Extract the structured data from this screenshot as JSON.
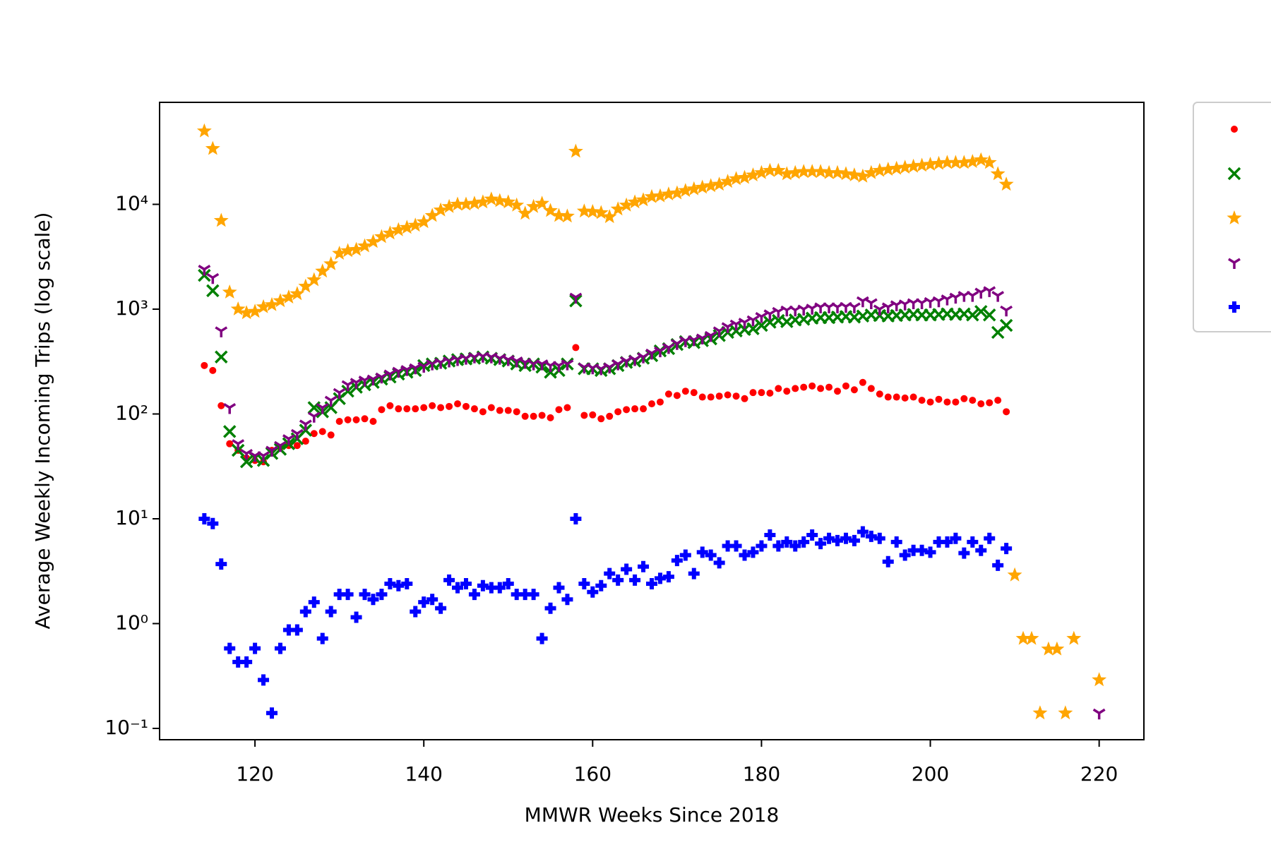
{
  "chart_data": {
    "type": "scatter",
    "xlabel": "MMWR Weeks Since 2018",
    "ylabel": "Average Weekly Incoming Trips (log scale)",
    "yscale": "log",
    "legend": "outside right",
    "xlim": [
      108.7,
      225.3
    ],
    "xticks": [
      120,
      140,
      160,
      180,
      200,
      220
    ],
    "ylim": [
      0.078,
      94000
    ],
    "yticks": [
      {
        "value": 0.1,
        "label": "10⁻¹"
      },
      {
        "value": 1,
        "label": "10⁰"
      },
      {
        "value": 10,
        "label": "10¹"
      },
      {
        "value": 100,
        "label": "10²"
      },
      {
        "value": 1000,
        "label": "10³"
      },
      {
        "value": 10000,
        "label": "10⁴"
      }
    ],
    "x": [
      114,
      115,
      116,
      117,
      118,
      119,
      120,
      121,
      122,
      123,
      124,
      125,
      126,
      127,
      128,
      129,
      130,
      131,
      132,
      133,
      134,
      135,
      136,
      137,
      138,
      139,
      140,
      141,
      142,
      143,
      144,
      145,
      146,
      147,
      148,
      149,
      150,
      151,
      152,
      153,
      154,
      155,
      156,
      157,
      158,
      159,
      160,
      161,
      162,
      163,
      164,
      165,
      166,
      167,
      168,
      169,
      170,
      171,
      172,
      173,
      174,
      175,
      176,
      177,
      178,
      179,
      180,
      181,
      182,
      183,
      184,
      185,
      186,
      187,
      188,
      189,
      190,
      191,
      192,
      193,
      194,
      195,
      196,
      197,
      198,
      199,
      200,
      201,
      202,
      203,
      204,
      205,
      206,
      207,
      208,
      209,
      210,
      211,
      212,
      213,
      214,
      215,
      216,
      217,
      218,
      219,
      220
    ],
    "series": [
      {
        "color": "red",
        "marker": "o",
        "values": [
          290,
          260,
          120,
          52,
          45,
          38,
          36,
          35,
          45,
          48,
          50,
          50,
          55,
          65,
          68,
          63,
          85,
          88,
          88,
          90,
          85,
          110,
          120,
          112,
          112,
          112,
          115,
          120,
          115,
          118,
          125,
          118,
          112,
          105,
          115,
          108,
          108,
          105,
          95,
          95,
          97,
          92,
          110,
          115,
          430,
          97,
          98,
          90,
          95,
          105,
          110,
          112,
          112,
          125,
          130,
          155,
          150,
          165,
          160,
          145,
          145,
          148,
          152,
          148,
          140,
          160,
          160,
          158,
          175,
          165,
          175,
          180,
          185,
          175,
          180,
          165,
          185,
          170,
          200,
          175,
          155,
          145,
          145,
          142,
          145,
          135,
          130,
          138,
          130,
          130,
          140,
          135,
          125,
          128,
          135,
          105,
          null,
          null,
          null,
          null,
          null,
          null,
          null,
          null,
          null,
          null,
          null
        ]
      },
      {
        "color": "green",
        "marker": "x",
        "values": [
          2100,
          1500,
          350,
          68,
          45,
          35,
          38,
          36,
          42,
          46,
          52,
          58,
          70,
          115,
          105,
          115,
          140,
          165,
          180,
          190,
          200,
          215,
          225,
          240,
          250,
          260,
          290,
          300,
          305,
          320,
          330,
          335,
          340,
          350,
          340,
          330,
          320,
          300,
          290,
          300,
          280,
          250,
          260,
          300,
          1200,
          270,
          270,
          260,
          270,
          290,
          310,
          320,
          340,
          360,
          400,
          420,
          460,
          490,
          480,
          500,
          520,
          560,
          600,
          620,
          640,
          650,
          700,
          750,
          780,
          760,
          790,
          800,
          820,
          830,
          830,
          840,
          850,
          840,
          860,
          880,
          870,
          860,
          870,
          880,
          890,
          880,
          880,
          890,
          900,
          890,
          900,
          880,
          950,
          880,
          600,
          700,
          null,
          null,
          null,
          null,
          null,
          null,
          null,
          null,
          null,
          null,
          null
        ]
      },
      {
        "color": "orange",
        "marker": "*",
        "values": [
          50000,
          34000,
          7000,
          1450,
          1000,
          920,
          950,
          1050,
          1100,
          1200,
          1300,
          1400,
          1650,
          1900,
          2300,
          2700,
          3400,
          3600,
          3700,
          4000,
          4400,
          4900,
          5300,
          5700,
          6000,
          6300,
          6800,
          7800,
          8800,
          9500,
          10000,
          10000,
          10200,
          10500,
          11200,
          10800,
          10500,
          9800,
          8200,
          9500,
          10200,
          8700,
          7800,
          7700,
          32000,
          8600,
          8500,
          8300,
          7600,
          9000,
          9800,
          10500,
          11000,
          11800,
          12000,
          12500,
          12800,
          13500,
          14000,
          14500,
          15000,
          15500,
          16500,
          17500,
          18000,
          19000,
          20000,
          21000,
          21000,
          19500,
          20000,
          20500,
          20500,
          20500,
          20000,
          20000,
          19500,
          19000,
          18500,
          20000,
          21000,
          21500,
          22000,
          22500,
          23000,
          23500,
          24000,
          24500,
          25000,
          25000,
          25000,
          25500,
          26500,
          25000,
          19500,
          15500,
          2.9,
          0.72,
          0.72,
          0.14,
          0.57,
          0.57,
          0.14,
          0.72,
          null,
          null,
          0.29
        ]
      },
      {
        "color": "purple",
        "marker": "1",
        "values": [
          2400,
          2000,
          620,
          115,
          52,
          42,
          40,
          40,
          45,
          50,
          58,
          65,
          80,
          95,
          115,
          135,
          160,
          190,
          200,
          210,
          215,
          225,
          240,
          255,
          265,
          275,
          285,
          300,
          310,
          320,
          330,
          340,
          350,
          355,
          350,
          340,
          330,
          320,
          310,
          300,
          300,
          290,
          290,
          300,
          1300,
          280,
          275,
          270,
          280,
          300,
          320,
          330,
          350,
          380,
          400,
          430,
          470,
          500,
          510,
          530,
          560,
          620,
          680,
          720,
          750,
          790,
          850,
          900,
          950,
          980,
          980,
          1000,
          1020,
          1050,
          1050,
          1050,
          1060,
          1050,
          1200,
          1150,
          1000,
          1050,
          1100,
          1120,
          1150,
          1150,
          1180,
          1200,
          1250,
          1300,
          1350,
          1350,
          1450,
          1500,
          1350,
          980,
          null,
          null,
          null,
          null,
          null,
          null,
          null,
          null,
          null,
          null,
          0.14
        ]
      },
      {
        "color": "blue",
        "marker": "P",
        "values": [
          10,
          9,
          3.7,
          0.58,
          0.43,
          0.43,
          0.58,
          0.29,
          0.14,
          0.58,
          0.87,
          0.87,
          1.3,
          1.6,
          0.72,
          1.3,
          1.9,
          1.9,
          1.15,
          1.9,
          1.7,
          1.9,
          2.4,
          2.3,
          2.4,
          1.3,
          1.6,
          1.7,
          1.4,
          2.6,
          2.2,
          2.4,
          1.9,
          2.3,
          2.2,
          2.2,
          2.4,
          1.9,
          1.9,
          1.9,
          0.72,
          1.4,
          2.2,
          1.7,
          10,
          2.4,
          2.0,
          2.3,
          3.0,
          2.6,
          3.3,
          2.6,
          3.5,
          2.4,
          2.7,
          2.8,
          4.0,
          4.5,
          3.0,
          4.8,
          4.5,
          3.8,
          5.5,
          5.5,
          4.5,
          4.8,
          5.5,
          7.0,
          5.5,
          6.0,
          5.5,
          6.0,
          7.0,
          5.8,
          6.5,
          6.2,
          6.5,
          6.2,
          7.5,
          6.8,
          6.5,
          3.9,
          6.0,
          4.5,
          5.0,
          5.0,
          4.8,
          6.0,
          6.0,
          6.5,
          4.7,
          6.0,
          5.0,
          6.5,
          3.6,
          5.2,
          null,
          null,
          null,
          null,
          null,
          null,
          null,
          null,
          null,
          null,
          null
        ]
      }
    ]
  }
}
